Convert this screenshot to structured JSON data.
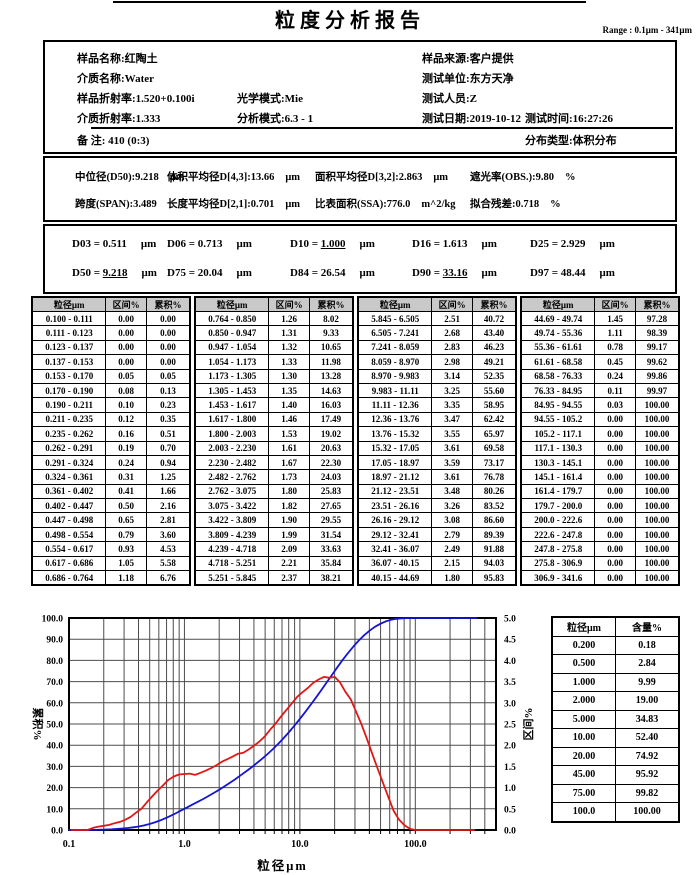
{
  "page": {
    "title": "粒度分析报告",
    "range_note": "Range : 0.1μm - 341μm"
  },
  "info": {
    "sample_name": {
      "label": "样品名称:",
      "value": "红陶土"
    },
    "sample_source": {
      "label": "样品来源:",
      "value": "客户提供"
    },
    "medium_name": {
      "label": "介质名称:",
      "value": "Water"
    },
    "test_unit": {
      "label": "测试单位:",
      "value": "东方天净"
    },
    "sample_ri": {
      "label": "样品折射率:",
      "value": "1.520+0.100i"
    },
    "optical_mode": {
      "label": "光学模式:",
      "value": "Mie"
    },
    "tester": {
      "label": "测试人员:",
      "value": "Z"
    },
    "medium_ri": {
      "label": "介质折射率:",
      "value": "1.333"
    },
    "analysis_mode": {
      "label": "分析模式:",
      "value": "6.3 - 1"
    },
    "test_date": {
      "label": "测试日期:",
      "value": "2019-10-12"
    },
    "test_time": {
      "label": "测试时间:",
      "value": "16:27:26"
    },
    "remark": {
      "label": "备 注:",
      "value": "410  (0:3)"
    },
    "distribution_type": {
      "label": "分布类型:",
      "value": "体积分布"
    }
  },
  "stats": {
    "median": {
      "label": "中位径(D50):",
      "value": "9.218",
      "unit": "μm"
    },
    "d43": {
      "label": "体积平均径D[4,3]:",
      "value": "13.66",
      "unit": "μm"
    },
    "d32": {
      "label": "面积平均径D[3,2]:",
      "value": "2.863",
      "unit": "μm"
    },
    "obscuration": {
      "label": "遮光率(OBS.):",
      "value": "9.80",
      "unit": "%"
    },
    "span": {
      "label": "跨度(SPAN):",
      "value": "3.489",
      "unit": ""
    },
    "d21": {
      "label": "长度平均径D[2,1]:",
      "value": "0.701",
      "unit": "μm"
    },
    "ssa": {
      "label": "比表面积(SSA):",
      "value": "776.0",
      "unit": "m^2/kg"
    },
    "residual": {
      "label": "拟合残差:",
      "value": "0.718",
      "unit": "%"
    }
  },
  "d_values": {
    "unit": "μm",
    "items": [
      {
        "name": "D03",
        "value": "0.511",
        "underline": false
      },
      {
        "name": "D06",
        "value": "0.713",
        "underline": false
      },
      {
        "name": "D10",
        "value": "1.000",
        "underline": true
      },
      {
        "name": "D16",
        "value": "1.613",
        "underline": false
      },
      {
        "name": "D25",
        "value": "2.929",
        "underline": false
      },
      {
        "name": "D50",
        "value": "9.218",
        "underline": true
      },
      {
        "name": "D75",
        "value": "20.04",
        "underline": false
      },
      {
        "name": "D84",
        "value": "26.54",
        "underline": false
      },
      {
        "name": "D90",
        "value": "33.16",
        "underline": true
      },
      {
        "name": "D97",
        "value": "48.44",
        "underline": false
      }
    ]
  },
  "distribution_table": {
    "headers": [
      "粒径μm",
      "区间%",
      "累积%"
    ],
    "groups": [
      [
        [
          "0.100 - 0.111",
          "0.00",
          "0.00"
        ],
        [
          "0.111 - 0.123",
          "0.00",
          "0.00"
        ],
        [
          "0.123 - 0.137",
          "0.00",
          "0.00"
        ],
        [
          "0.137 - 0.153",
          "0.00",
          "0.00"
        ],
        [
          "0.153 - 0.170",
          "0.05",
          "0.05"
        ],
        [
          "0.170 - 0.190",
          "0.08",
          "0.13"
        ],
        [
          "0.190 - 0.211",
          "0.10",
          "0.23"
        ],
        [
          "0.211 - 0.235",
          "0.12",
          "0.35"
        ],
        [
          "0.235 - 0.262",
          "0.16",
          "0.51"
        ],
        [
          "0.262 - 0.291",
          "0.19",
          "0.70"
        ],
        [
          "0.291 - 0.324",
          "0.24",
          "0.94"
        ],
        [
          "0.324 - 0.361",
          "0.31",
          "1.25"
        ],
        [
          "0.361 - 0.402",
          "0.41",
          "1.66"
        ],
        [
          "0.402 - 0.447",
          "0.50",
          "2.16"
        ],
        [
          "0.447 - 0.498",
          "0.65",
          "2.81"
        ],
        [
          "0.498 - 0.554",
          "0.79",
          "3.60"
        ],
        [
          "0.554 - 0.617",
          "0.93",
          "4.53"
        ],
        [
          "0.617 - 0.686",
          "1.05",
          "5.58"
        ],
        [
          "0.686 - 0.764",
          "1.18",
          "6.76"
        ]
      ],
      [
        [
          "0.764 - 0.850",
          "1.26",
          "8.02"
        ],
        [
          "0.850 - 0.947",
          "1.31",
          "9.33"
        ],
        [
          "0.947 - 1.054",
          "1.32",
          "10.65"
        ],
        [
          "1.054 - 1.173",
          "1.33",
          "11.98"
        ],
        [
          "1.173 - 1.305",
          "1.30",
          "13.28"
        ],
        [
          "1.305 - 1.453",
          "1.35",
          "14.63"
        ],
        [
          "1.453 - 1.617",
          "1.40",
          "16.03"
        ],
        [
          "1.617 - 1.800",
          "1.46",
          "17.49"
        ],
        [
          "1.800 - 2.003",
          "1.53",
          "19.02"
        ],
        [
          "2.003 - 2.230",
          "1.61",
          "20.63"
        ],
        [
          "2.230 - 2.482",
          "1.67",
          "22.30"
        ],
        [
          "2.482 - 2.762",
          "1.73",
          "24.03"
        ],
        [
          "2.762 - 3.075",
          "1.80",
          "25.83"
        ],
        [
          "3.075 - 3.422",
          "1.82",
          "27.65"
        ],
        [
          "3.422 - 3.809",
          "1.90",
          "29.55"
        ],
        [
          "3.809 - 4.239",
          "1.99",
          "31.54"
        ],
        [
          "4.239 - 4.718",
          "2.09",
          "33.63"
        ],
        [
          "4.718 - 5.251",
          "2.21",
          "35.84"
        ],
        [
          "5.251 - 5.845",
          "2.37",
          "38.21"
        ]
      ],
      [
        [
          "5.845 - 6.505",
          "2.51",
          "40.72"
        ],
        [
          "6.505 - 7.241",
          "2.68",
          "43.40"
        ],
        [
          "7.241 - 8.059",
          "2.83",
          "46.23"
        ],
        [
          "8.059 - 8.970",
          "2.98",
          "49.21"
        ],
        [
          "8.970 - 9.983",
          "3.14",
          "52.35"
        ],
        [
          "9.983 - 11.11",
          "3.25",
          "55.60"
        ],
        [
          "11.11 - 12.36",
          "3.35",
          "58.95"
        ],
        [
          "12.36 - 13.76",
          "3.47",
          "62.42"
        ],
        [
          "13.76 - 15.32",
          "3.55",
          "65.97"
        ],
        [
          "15.32 - 17.05",
          "3.61",
          "69.58"
        ],
        [
          "17.05 - 18.97",
          "3.59",
          "73.17"
        ],
        [
          "18.97 - 21.12",
          "3.61",
          "76.78"
        ],
        [
          "21.12 - 23.51",
          "3.48",
          "80.26"
        ],
        [
          "23.51 - 26.16",
          "3.26",
          "83.52"
        ],
        [
          "26.16 - 29.12",
          "3.08",
          "86.60"
        ],
        [
          "29.12 - 32.41",
          "2.79",
          "89.39"
        ],
        [
          "32.41 - 36.07",
          "2.49",
          "91.88"
        ],
        [
          "36.07 - 40.15",
          "2.15",
          "94.03"
        ],
        [
          "40.15 - 44.69",
          "1.80",
          "95.83"
        ]
      ],
      [
        [
          "44.69 - 49.74",
          "1.45",
          "97.28"
        ],
        [
          "49.74 - 55.36",
          "1.11",
          "98.39"
        ],
        [
          "55.36 - 61.61",
          "0.78",
          "99.17"
        ],
        [
          "61.61 - 68.58",
          "0.45",
          "99.62"
        ],
        [
          "68.58 - 76.33",
          "0.24",
          "99.86"
        ],
        [
          "76.33 - 84.95",
          "0.11",
          "99.97"
        ],
        [
          "84.95 - 94.55",
          "0.03",
          "100.00"
        ],
        [
          "94.55 - 105.2",
          "0.00",
          "100.00"
        ],
        [
          "105.2 - 117.1",
          "0.00",
          "100.00"
        ],
        [
          "117.1 - 130.3",
          "0.00",
          "100.00"
        ],
        [
          "130.3 - 145.1",
          "0.00",
          "100.00"
        ],
        [
          "145.1 - 161.4",
          "0.00",
          "100.00"
        ],
        [
          "161.4 - 179.7",
          "0.00",
          "100.00"
        ],
        [
          "179.7 - 200.0",
          "0.00",
          "100.00"
        ],
        [
          "200.0 - 222.6",
          "0.00",
          "100.00"
        ],
        [
          "222.6 - 247.8",
          "0.00",
          "100.00"
        ],
        [
          "247.8 - 275.8",
          "0.00",
          "100.00"
        ],
        [
          "275.8 - 306.9",
          "0.00",
          "100.00"
        ],
        [
          "306.9 - 341.6",
          "0.00",
          "100.00"
        ]
      ]
    ]
  },
  "summary_table": {
    "headers": [
      "粒径μm",
      "含量%"
    ],
    "rows": [
      [
        "0.200",
        "0.18"
      ],
      [
        "0.500",
        "2.84"
      ],
      [
        "1.000",
        "9.99"
      ],
      [
        "2.000",
        "19.00"
      ],
      [
        "5.000",
        "34.83"
      ],
      [
        "10.00",
        "52.40"
      ],
      [
        "20.00",
        "74.92"
      ],
      [
        "45.00",
        "95.92"
      ],
      [
        "75.00",
        "99.82"
      ],
      [
        "100.0",
        "100.00"
      ]
    ]
  },
  "chart_data": {
    "type": "line",
    "x_axis": {
      "label": "粒径μm",
      "scale": "log",
      "min": 0.1,
      "max": 500,
      "tick_values": [
        0.1,
        1,
        10,
        100
      ],
      "tick_labels": [
        "0.1",
        "1.0",
        "10.0",
        "100.0"
      ]
    },
    "y_axis_left": {
      "label": "累积%",
      "min": 0,
      "max": 100,
      "step": 10
    },
    "y_axis_right": {
      "label": "区间%",
      "min": 0,
      "max": 5,
      "step": 0.5
    },
    "grid": true,
    "series": [
      {
        "name": "累积%",
        "axis": "left",
        "color": "#1414d2",
        "x": [
          0.1,
          0.111,
          0.123,
          0.137,
          0.153,
          0.17,
          0.19,
          0.211,
          0.235,
          0.262,
          0.291,
          0.324,
          0.361,
          0.402,
          0.447,
          0.498,
          0.554,
          0.617,
          0.686,
          0.764,
          0.85,
          0.947,
          1.054,
          1.173,
          1.305,
          1.453,
          1.617,
          1.8,
          2.003,
          2.23,
          2.482,
          2.762,
          3.075,
          3.422,
          3.809,
          4.239,
          4.718,
          5.251,
          5.845,
          6.505,
          7.241,
          8.059,
          8.97,
          9.983,
          11.11,
          12.36,
          13.76,
          15.32,
          17.05,
          18.97,
          21.12,
          23.51,
          26.16,
          29.12,
          32.41,
          36.07,
          40.15,
          44.69,
          49.74,
          55.36,
          61.61,
          68.58,
          76.33,
          84.95,
          94.55,
          105.2,
          117.1,
          130.3,
          145.1,
          161.4,
          179.7,
          200,
          222.6,
          247.8,
          275.8,
          306.9,
          341.6
        ],
        "y": [
          0,
          0,
          0,
          0,
          0,
          0.05,
          0.13,
          0.23,
          0.35,
          0.51,
          0.7,
          0.94,
          1.25,
          1.66,
          2.16,
          2.81,
          3.6,
          4.53,
          5.58,
          6.76,
          8.02,
          9.33,
          10.65,
          11.98,
          13.28,
          14.63,
          16.03,
          17.49,
          19.02,
          20.63,
          22.3,
          24.03,
          25.83,
          27.65,
          29.55,
          31.54,
          33.63,
          35.84,
          38.21,
          40.72,
          43.4,
          46.23,
          49.21,
          52.35,
          55.6,
          58.95,
          62.42,
          65.97,
          69.58,
          73.17,
          76.78,
          80.26,
          83.52,
          86.6,
          89.39,
          91.88,
          94.03,
          95.83,
          97.28,
          98.39,
          99.17,
          99.62,
          99.86,
          99.97,
          100,
          100,
          100,
          100,
          100,
          100,
          100,
          100,
          100,
          100,
          100,
          100,
          100
        ]
      },
      {
        "name": "区间%",
        "axis": "right",
        "color": "#e01717",
        "x": [
          0.105,
          0.117,
          0.13,
          0.145,
          0.161,
          0.18,
          0.2,
          0.223,
          0.248,
          0.276,
          0.307,
          0.342,
          0.381,
          0.424,
          0.472,
          0.525,
          0.585,
          0.651,
          0.724,
          0.806,
          0.897,
          0.999,
          1.112,
          1.237,
          1.377,
          1.533,
          1.706,
          1.899,
          2.113,
          2.353,
          2.618,
          2.914,
          3.244,
          3.61,
          4.018,
          4.472,
          4.978,
          5.54,
          6.166,
          6.863,
          7.639,
          8.502,
          9.462,
          10.53,
          11.72,
          13.04,
          14.52,
          16.16,
          17.98,
          20.02,
          22.28,
          24.8,
          27.6,
          30.72,
          34.19,
          38.05,
          42.36,
          47.15,
          52.47,
          58.4,
          65,
          72.35,
          80.52,
          89.62,
          99.73,
          111,
          123.5,
          137.5,
          153,
          170.3,
          189.6,
          211,
          234.9,
          261.4,
          290.9,
          323.8
        ],
        "y": [
          0,
          0,
          0,
          0,
          0.05,
          0.08,
          0.1,
          0.12,
          0.16,
          0.19,
          0.24,
          0.31,
          0.41,
          0.5,
          0.65,
          0.79,
          0.93,
          1.05,
          1.18,
          1.26,
          1.31,
          1.32,
          1.33,
          1.3,
          1.35,
          1.4,
          1.46,
          1.53,
          1.61,
          1.67,
          1.73,
          1.8,
          1.82,
          1.9,
          1.99,
          2.09,
          2.21,
          2.37,
          2.51,
          2.68,
          2.83,
          2.98,
          3.14,
          3.25,
          3.35,
          3.47,
          3.55,
          3.61,
          3.59,
          3.61,
          3.48,
          3.26,
          3.08,
          2.79,
          2.49,
          2.15,
          1.8,
          1.45,
          1.11,
          0.78,
          0.45,
          0.24,
          0.11,
          0.03,
          0,
          0,
          0,
          0,
          0,
          0,
          0,
          0,
          0,
          0,
          0,
          0
        ]
      }
    ]
  }
}
